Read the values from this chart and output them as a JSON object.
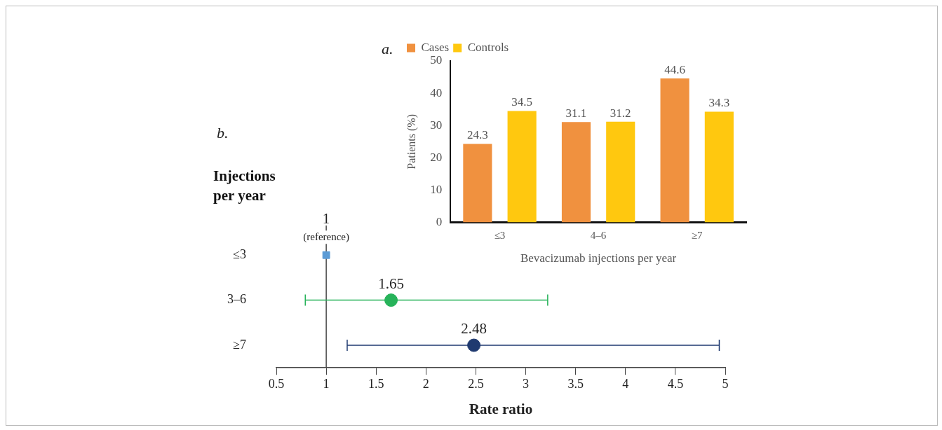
{
  "chart_data": [
    {
      "type": "bar",
      "title": "a.",
      "categories": [
        "≤3",
        "4–6",
        "≥7"
      ],
      "xlabel": "Bevacizumab injections per year",
      "ylabel": "Patients (%)",
      "series": [
        {
          "name": "Cases",
          "color": "#f0913f",
          "values": [
            24.3,
            31.1,
            44.6
          ]
        },
        {
          "name": "Controls",
          "color": "#ffc80f",
          "values": [
            34.5,
            31.2,
            34.3
          ]
        }
      ],
      "ylim": [
        0,
        50
      ],
      "yticks": [
        0,
        10,
        20,
        30,
        40,
        50
      ],
      "grid": false,
      "legend": "top left",
      "data_labels": true
    },
    {
      "type": "scatter",
      "title": "b.",
      "orientation": "horizontal",
      "categories": [
        "≤3",
        "3–6",
        "≥7"
      ],
      "xlabel": "Rate ratio",
      "ylabel": "Injections per year",
      "series": [
        {
          "color": "#5b9bd5",
          "marker": "square",
          "values": [
            1,
            null,
            null
          ],
          "value_labels": [
            "1",
            null,
            null
          ]
        },
        {
          "color": "#27b35a",
          "marker": "circle",
          "values": [
            null,
            1.65,
            null
          ],
          "errors": [
            null,
            [
              0.79,
              3.22
            ],
            null
          ],
          "value_labels": [
            null,
            "1.65",
            null
          ]
        },
        {
          "color": "#1f3a70",
          "marker": "circle",
          "values": [
            null,
            null,
            2.48
          ],
          "errors": [
            null,
            null,
            [
              1.21,
              4.94
            ]
          ],
          "value_labels": [
            null,
            null,
            "2.48"
          ]
        }
      ],
      "xlim": [
        0.5,
        5
      ],
      "xticks": [
        0.5,
        1,
        1.5,
        2,
        2.5,
        3,
        3.5,
        4,
        4.5,
        5
      ],
      "ref_lines": [
        {
          "axis": "x",
          "value": 1,
          "color": "#444444"
        }
      ],
      "annotations": [
        {
          "text": "(reference)",
          "x": 1,
          "y": "≤3"
        }
      ],
      "grid": false,
      "legend": false
    }
  ]
}
